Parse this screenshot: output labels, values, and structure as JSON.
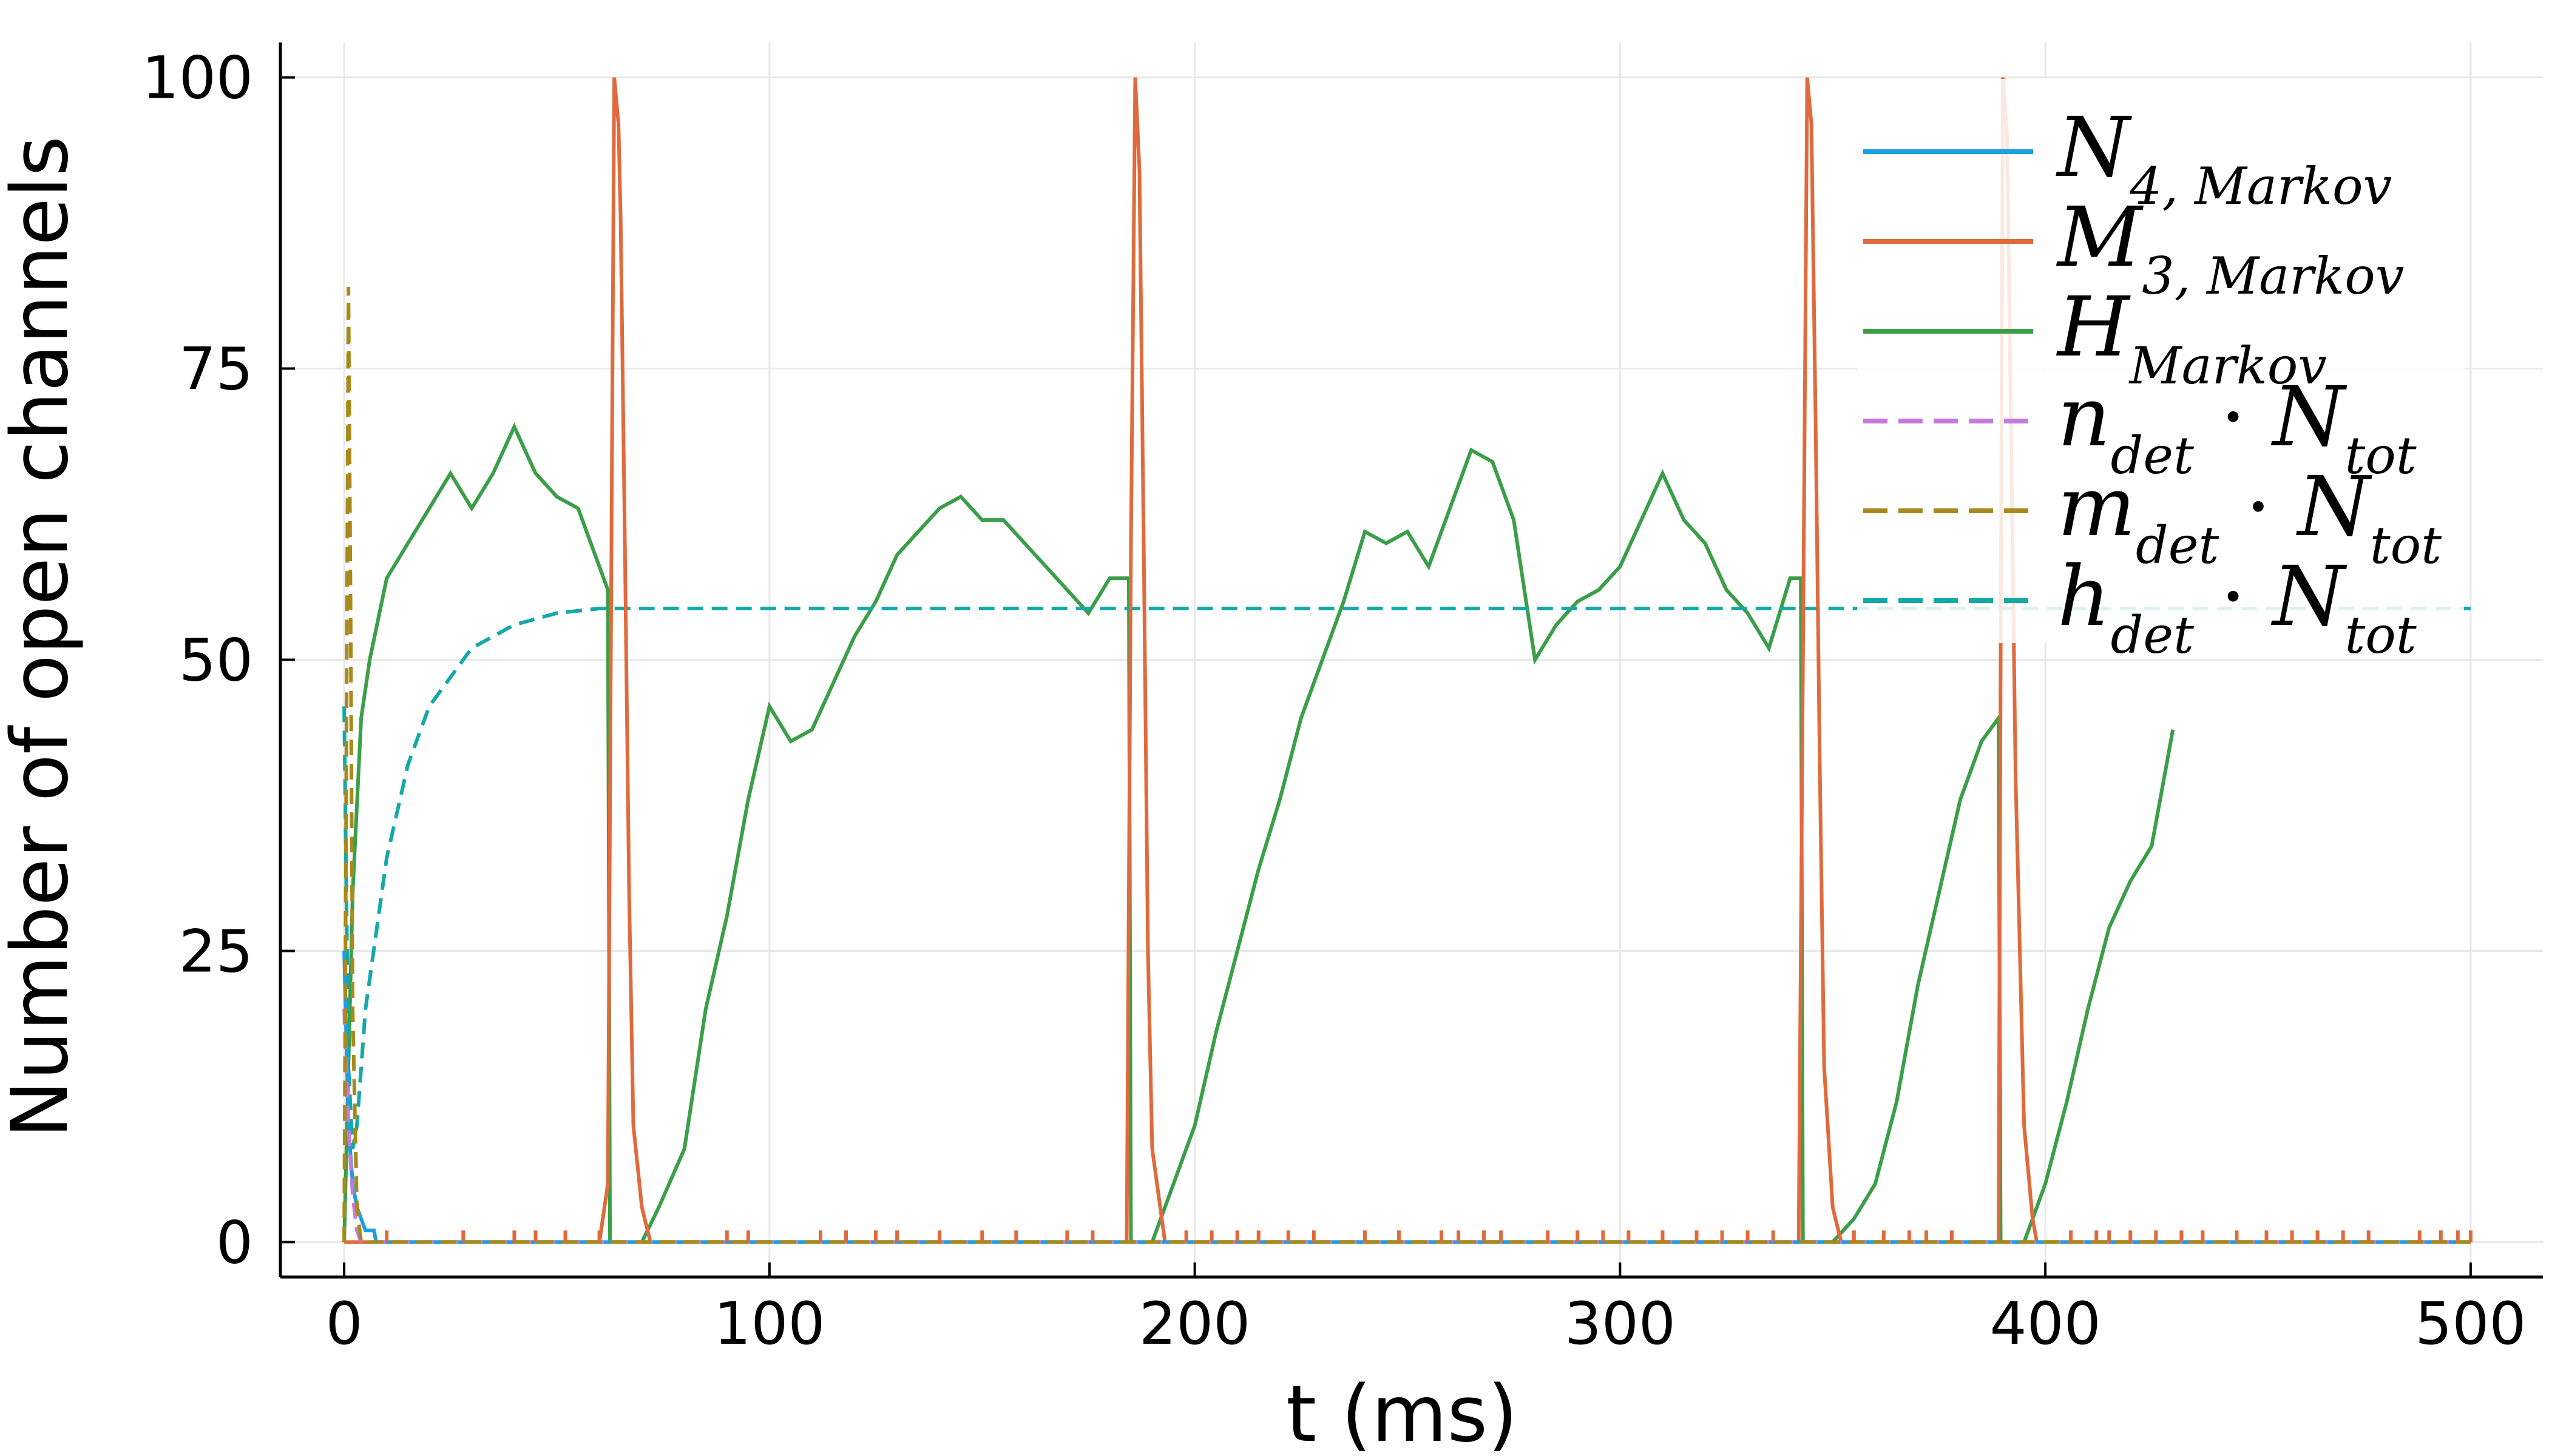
{
  "chart_data": {
    "type": "line",
    "xlabel": "t (ms)",
    "ylabel": "Number of open channels",
    "xlim": [
      -15,
      517
    ],
    "ylim": [
      -3,
      103
    ],
    "xticks": [
      0,
      100,
      200,
      300,
      400,
      500
    ],
    "yticks": [
      0,
      25,
      50,
      75,
      100
    ],
    "grid": true,
    "legend_position": "top-right",
    "series": [
      {
        "key": "N4",
        "legend": {
          "base": "N",
          "sub": "4, Markov"
        },
        "color": "#1f9ee0",
        "dash": "solid",
        "points": [
          [
            0,
            25
          ],
          [
            1,
            10
          ],
          [
            2,
            5
          ],
          [
            3,
            3
          ],
          [
            4,
            2
          ],
          [
            5,
            1
          ],
          [
            7,
            1
          ],
          [
            7.5,
            0
          ],
          [
            500,
            0
          ]
        ]
      },
      {
        "key": "M3",
        "legend": {
          "base": "M",
          "sub": "3, Markov"
        },
        "color": "#e06a3b",
        "dash": "solid",
        "points": [
          [
            0,
            0
          ],
          [
            60,
            0
          ],
          [
            62,
            5
          ],
          [
            63,
            70
          ],
          [
            63.5,
            100
          ],
          [
            64.5,
            96
          ],
          [
            65,
            88
          ],
          [
            66,
            60
          ],
          [
            67,
            30
          ],
          [
            68,
            10
          ],
          [
            70,
            3
          ],
          [
            72,
            0
          ],
          [
            184,
            0
          ],
          [
            185,
            60
          ],
          [
            186,
            100
          ],
          [
            187,
            92
          ],
          [
            188,
            60
          ],
          [
            189,
            25
          ],
          [
            190,
            8
          ],
          [
            193,
            0
          ],
          [
            342,
            0
          ],
          [
            343,
            50
          ],
          [
            344,
            100
          ],
          [
            345,
            96
          ],
          [
            346,
            70
          ],
          [
            347,
            40
          ],
          [
            348,
            15
          ],
          [
            350,
            3
          ],
          [
            352,
            0
          ],
          [
            389,
            0
          ],
          [
            390,
            100
          ],
          [
            391,
            95
          ],
          [
            393,
            40
          ],
          [
            395,
            10
          ],
          [
            397,
            2
          ],
          [
            398,
            0
          ],
          [
            500,
            0
          ]
        ]
      },
      {
        "key": "H",
        "legend": {
          "base": "H",
          "sub": "Markov"
        },
        "color": "#3b9e48",
        "dash": "solid",
        "points": [
          [
            0,
            0
          ],
          [
            2,
            30
          ],
          [
            4,
            45
          ],
          [
            6,
            50
          ],
          [
            10,
            57
          ],
          [
            15,
            60
          ],
          [
            20,
            63
          ],
          [
            25,
            66
          ],
          [
            30,
            63
          ],
          [
            35,
            66
          ],
          [
            40,
            70
          ],
          [
            45,
            66
          ],
          [
            50,
            64
          ],
          [
            55,
            63
          ],
          [
            60,
            58
          ],
          [
            62,
            56
          ],
          [
            62.5,
            0
          ],
          [
            70,
            0
          ],
          [
            74,
            3
          ],
          [
            80,
            8
          ],
          [
            85,
            20
          ],
          [
            90,
            28
          ],
          [
            95,
            38
          ],
          [
            100,
            46
          ],
          [
            105,
            43
          ],
          [
            110,
            44
          ],
          [
            115,
            48
          ],
          [
            120,
            52
          ],
          [
            125,
            55
          ],
          [
            130,
            59
          ],
          [
            135,
            61
          ],
          [
            140,
            63
          ],
          [
            145,
            64
          ],
          [
            150,
            62
          ],
          [
            155,
            62
          ],
          [
            160,
            60
          ],
          [
            165,
            58
          ],
          [
            170,
            56
          ],
          [
            175,
            54
          ],
          [
            180,
            57
          ],
          [
            184.5,
            57
          ],
          [
            185,
            0
          ],
          [
            190,
            0
          ],
          [
            195,
            5
          ],
          [
            200,
            10
          ],
          [
            205,
            18
          ],
          [
            210,
            25
          ],
          [
            215,
            32
          ],
          [
            220,
            38
          ],
          [
            225,
            45
          ],
          [
            230,
            50
          ],
          [
            235,
            55
          ],
          [
            240,
            61
          ],
          [
            245,
            60
          ],
          [
            250,
            61
          ],
          [
            255,
            58
          ],
          [
            260,
            63
          ],
          [
            265,
            68
          ],
          [
            270,
            67
          ],
          [
            275,
            62
          ],
          [
            280,
            50
          ],
          [
            285,
            53
          ],
          [
            290,
            55
          ],
          [
            295,
            56
          ],
          [
            300,
            58
          ],
          [
            305,
            62
          ],
          [
            310,
            66
          ],
          [
            315,
            62
          ],
          [
            320,
            60
          ],
          [
            325,
            56
          ],
          [
            330,
            54
          ],
          [
            335,
            51
          ],
          [
            340,
            57
          ],
          [
            342.5,
            57
          ],
          [
            343,
            0
          ],
          [
            350,
            0
          ],
          [
            355,
            2
          ],
          [
            360,
            5
          ],
          [
            365,
            12
          ],
          [
            370,
            22
          ],
          [
            375,
            30
          ],
          [
            380,
            38
          ],
          [
            385,
            43
          ],
          [
            389,
            45
          ],
          [
            389.5,
            0
          ],
          [
            395,
            0
          ],
          [
            400,
            5
          ],
          [
            405,
            12
          ],
          [
            410,
            20
          ],
          [
            415,
            27
          ],
          [
            420,
            31
          ],
          [
            425,
            34
          ],
          [
            430,
            44
          ]
        ]
      },
      {
        "key": "n_det",
        "legend": {
          "base": "n",
          "sub": "det",
          "tail_base": "N",
          "tail_sub": "tot"
        },
        "color": "#c27bdb",
        "dash": "dashed",
        "points": [
          [
            0,
            20
          ],
          [
            1,
            10
          ],
          [
            2,
            4
          ],
          [
            3,
            1
          ],
          [
            4,
            0
          ],
          [
            500,
            0
          ]
        ]
      },
      {
        "key": "m_det",
        "legend": {
          "base": "m",
          "sub": "det",
          "tail_base": "N",
          "tail_sub": "tot"
        },
        "color": "#a8891c",
        "dash": "dashed",
        "points": [
          [
            0,
            0
          ],
          [
            0.5,
            40
          ],
          [
            1,
            82
          ],
          [
            1.5,
            55
          ],
          [
            2,
            20
          ],
          [
            3,
            3
          ],
          [
            4,
            0
          ],
          [
            500,
            0
          ]
        ]
      },
      {
        "key": "h_det",
        "legend": {
          "base": "h",
          "sub": "det",
          "tail_base": "N",
          "tail_sub": "tot"
        },
        "color": "#15a8a8",
        "dash": "dashed",
        "points": [
          [
            0,
            46
          ],
          [
            1,
            15
          ],
          [
            2,
            8
          ],
          [
            3,
            10
          ],
          [
            5,
            20
          ],
          [
            10,
            33
          ],
          [
            15,
            41
          ],
          [
            20,
            46
          ],
          [
            30,
            51
          ],
          [
            40,
            53
          ],
          [
            50,
            54
          ],
          [
            60,
            54.4
          ],
          [
            500,
            54.4
          ]
        ]
      }
    ],
    "m3_spikes": [
      10,
      28,
      40,
      45,
      52,
      60,
      90,
      95,
      112,
      118,
      125,
      130,
      140,
      150,
      158,
      170,
      176,
      198,
      204,
      210,
      215,
      222,
      228,
      240,
      248,
      258,
      262,
      268,
      272,
      283,
      290,
      296,
      302,
      310,
      318,
      324,
      330,
      336,
      355,
      362,
      368,
      372,
      378,
      406,
      412,
      415,
      420,
      426,
      432,
      437,
      445,
      452,
      458,
      464,
      470,
      476,
      488,
      493,
      497,
      500
    ]
  }
}
